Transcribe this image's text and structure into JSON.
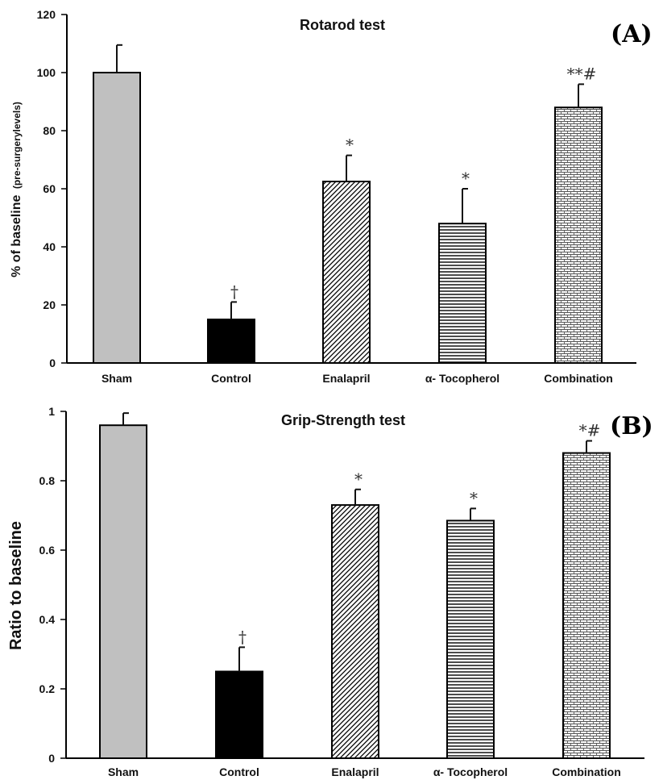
{
  "chart_data": [
    {
      "type": "bar",
      "panel_label": "(A)",
      "title": "Rotarod test",
      "ylabel_main": "% of baseline",
      "ylabel_sub": "(pre-surgerylevels)",
      "ylim": [
        0,
        120
      ],
      "yticks": [
        0,
        20,
        40,
        60,
        80,
        100,
        120
      ],
      "categories": [
        "Sham",
        "Control",
        "Enalapril",
        "α- Tocopherol",
        "Combination"
      ],
      "values": [
        100,
        15,
        62.5,
        48,
        88
      ],
      "errors": [
        9.5,
        6,
        9,
        12,
        8
      ],
      "annotations": [
        "",
        "†",
        "*",
        "*",
        "**#"
      ],
      "fills": [
        "gray",
        "black",
        "diagonal",
        "horizontal",
        "brick"
      ]
    },
    {
      "type": "bar",
      "panel_label": "(B)",
      "title": "Grip-Strength test",
      "ylabel_main": "Ratio to baseline",
      "ylabel_sub": "",
      "ylim": [
        0,
        1
      ],
      "yticks": [
        0,
        0.2,
        0.4,
        0.6,
        0.8,
        1
      ],
      "categories": [
        "Sham",
        "Control",
        "Enalapril",
        "α- Tocopherol",
        "Combination"
      ],
      "values": [
        0.96,
        0.25,
        0.73,
        0.685,
        0.88
      ],
      "errors": [
        0.035,
        0.07,
        0.045,
        0.035,
        0.035
      ],
      "annotations": [
        "",
        "†",
        "*",
        "*",
        "*#"
      ],
      "fills": [
        "gray",
        "black",
        "diagonal",
        "horizontal",
        "brick"
      ]
    }
  ],
  "colors": {
    "gray": "#c0c0c0",
    "black": "#000000",
    "pattern_ink": "#000000",
    "background": "#ffffff"
  }
}
